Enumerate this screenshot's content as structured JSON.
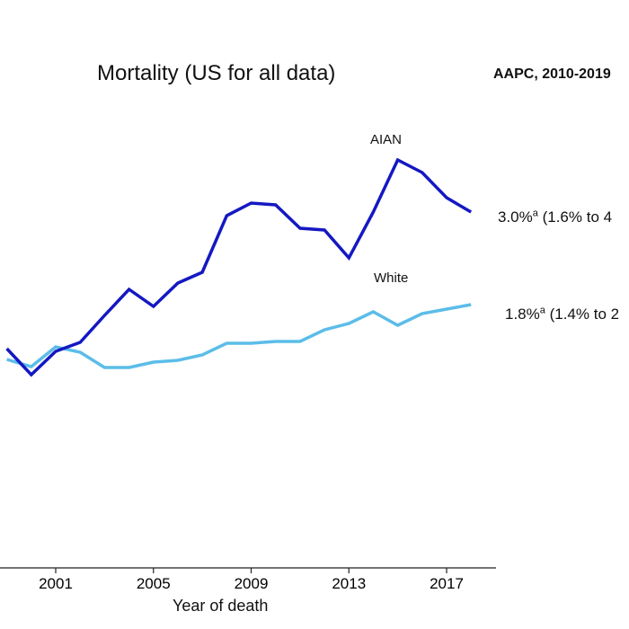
{
  "chart_data": {
    "type": "line",
    "title": "Mortality (US for all data)",
    "xlabel": "Year of death",
    "ylabel": "",
    "xlim": [
      1999,
      2019
    ],
    "x_ticks": [
      2001,
      2005,
      2009,
      2013,
      2017
    ],
    "x": [
      1999,
      2000,
      2001,
      2002,
      2003,
      2004,
      2005,
      2006,
      2007,
      2008,
      2009,
      2010,
      2011,
      2012,
      2013,
      2014,
      2015,
      2016,
      2017,
      2018
    ],
    "series": [
      {
        "name": "AIAN",
        "color": "#1418c2",
        "values": [
          388,
          417,
          391,
          381,
          351,
          322,
          341,
          315,
          303,
          240,
          226,
          228,
          254,
          256,
          287,
          236,
          178,
          192,
          220,
          236
        ]
      },
      {
        "name": "White",
        "color": "#5bbde8",
        "values": [
          400,
          408,
          386,
          392,
          409,
          409,
          403,
          401,
          395,
          382,
          382,
          380,
          380,
          367,
          360,
          347,
          362,
          349,
          344,
          339
        ]
      }
    ],
    "aapc_header": "AAPC, 2010-2019",
    "aapc": [
      {
        "series": "AIAN",
        "value": "3.0%",
        "sup": "a",
        "ci": " (1.6% to 4"
      },
      {
        "series": "White",
        "value": "1.8%",
        "sup": "a",
        "ci": " (1.4% to 2"
      }
    ]
  }
}
